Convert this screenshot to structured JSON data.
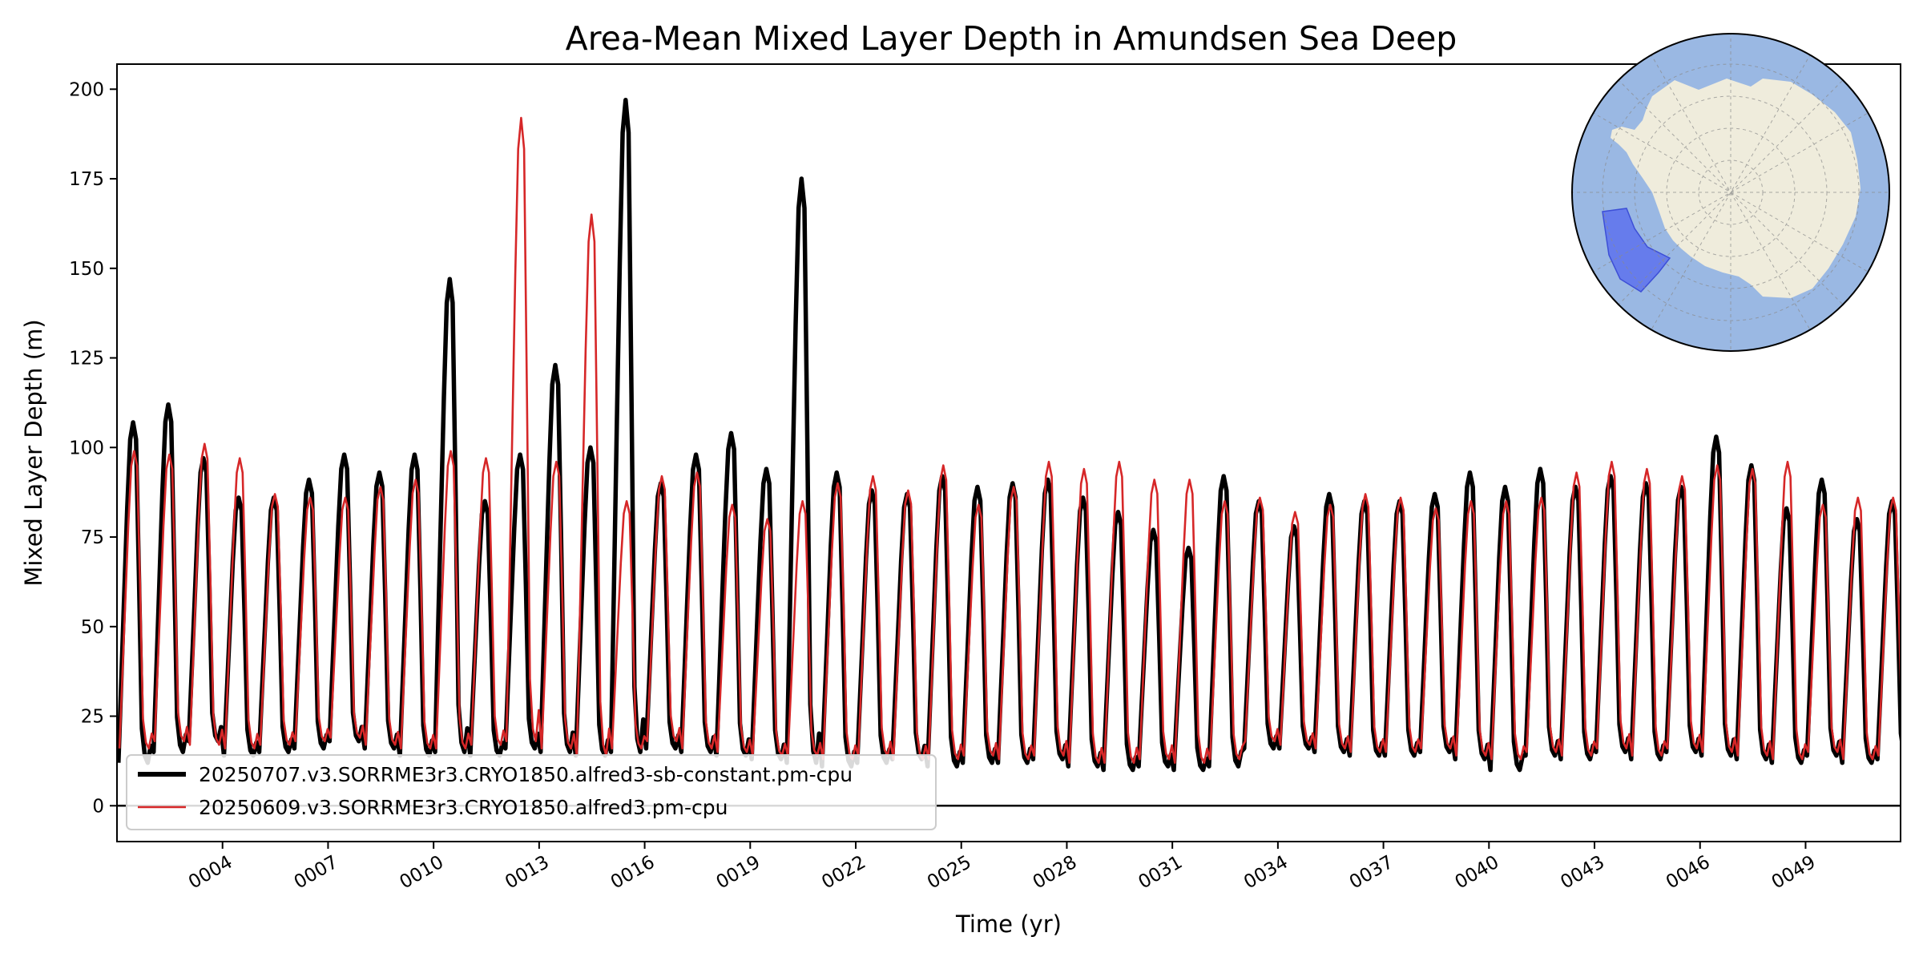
{
  "chart_data": {
    "type": "line",
    "title": "Area-Mean Mixed Layer Depth in Amundsen Sea Deep",
    "xlabel": "Time (yr)",
    "ylabel": "Mixed Layer Depth (m)",
    "xlim": [
      1,
      51.7
    ],
    "ylim": [
      -10,
      207
    ],
    "xticks": [
      4,
      7,
      10,
      13,
      16,
      19,
      22,
      25,
      28,
      31,
      34,
      37,
      40,
      43,
      46,
      49
    ],
    "xtick_labels": [
      "0004",
      "0007",
      "0010",
      "0013",
      "0016",
      "0019",
      "0022",
      "0025",
      "0028",
      "0031",
      "0034",
      "0037",
      "0040",
      "0043",
      "0046",
      "0049"
    ],
    "yticks": [
      0,
      25,
      50,
      75,
      100,
      125,
      150,
      175,
      200
    ],
    "ytick_labels": [
      "0",
      "25",
      "50",
      "75",
      "100",
      "125",
      "150",
      "175",
      "200"
    ],
    "reference_line_y": 0,
    "grid": false,
    "legend_position": "lower-left",
    "series": [
      {
        "name": "20250707.v3.SORRME3r3.CRYO1850.alfred3-sb-constant.pm-cpu",
        "color": "#000000",
        "style": "thick",
        "annual_max": [
          107,
          112,
          97,
          86,
          86,
          91,
          98,
          93,
          98,
          147,
          85,
          98,
          123,
          100,
          197,
          90,
          98,
          104,
          94,
          175,
          93,
          88,
          87,
          92,
          89,
          90,
          91,
          86,
          82,
          77,
          72,
          92,
          85,
          78,
          87,
          85,
          85,
          87,
          93,
          89,
          94,
          89,
          92,
          90,
          89,
          103,
          95,
          83,
          91,
          80,
          85
        ],
        "annual_min": [
          12,
          15,
          18,
          14,
          15,
          16,
          18,
          16,
          14,
          15,
          14,
          16,
          15,
          14,
          15,
          16,
          15,
          14,
          13,
          12,
          11,
          12,
          13,
          11,
          12,
          12,
          13,
          11,
          10,
          11,
          10,
          11,
          16,
          16,
          15,
          14,
          14,
          15,
          13,
          10,
          14,
          13,
          15,
          13,
          15,
          14,
          13,
          12,
          14,
          12,
          13
        ]
      },
      {
        "name": "20250609.v3.SORRME3r3.CRYO1850.alfred3.pm-cpu",
        "color": "#d62728",
        "style": "thin",
        "annual_max": [
          99,
          98,
          101,
          97,
          87,
          86,
          86,
          89,
          91,
          99,
          97,
          192,
          96,
          165,
          85,
          92,
          93,
          84,
          80,
          85,
          90,
          92,
          88,
          95,
          84,
          89,
          96,
          94,
          96,
          91,
          91,
          85,
          86,
          82,
          84,
          87,
          86,
          83,
          85,
          85,
          86,
          93,
          96,
          94,
          92,
          95,
          94,
          96,
          84,
          86,
          86
        ],
        "annual_min": [
          16,
          18,
          17,
          16,
          17,
          18,
          19,
          17,
          16,
          16,
          17,
          18,
          16,
          14,
          16,
          18,
          16,
          15,
          14,
          14,
          13,
          14,
          13,
          13,
          14,
          13,
          14,
          12,
          12,
          13,
          12,
          13,
          18,
          17,
          16,
          15,
          15,
          16,
          14,
          13,
          15,
          14,
          16,
          14,
          16,
          15,
          14,
          13,
          15,
          13,
          14
        ]
      }
    ],
    "inset_map": {
      "type": "south-polar-stereographic",
      "ocean_color": "#9ab8e3",
      "land_color": "#efecdc",
      "region_color": "#5468ef"
    }
  }
}
